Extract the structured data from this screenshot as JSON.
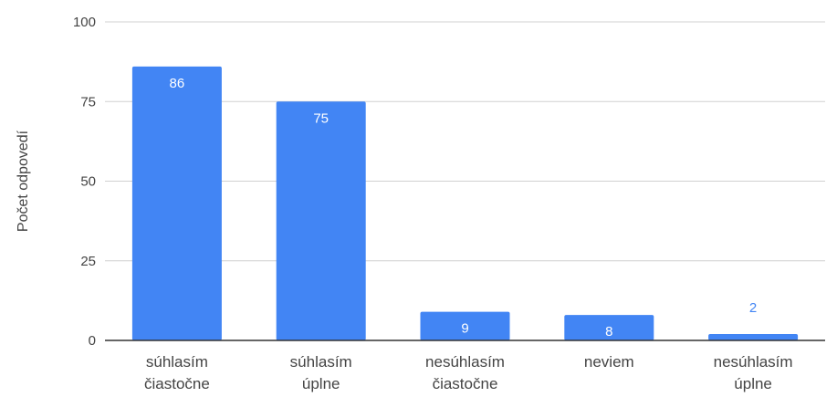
{
  "chart_data": {
    "type": "bar",
    "title": "",
    "xlabel": "",
    "ylabel": "Počet odpovedí",
    "categories": [
      [
        "súhlasím",
        "čiastočne"
      ],
      [
        "súhlasím",
        "úplne"
      ],
      [
        "nesúhlasím",
        "čiastočne"
      ],
      [
        "neviem"
      ],
      [
        "nesúhlasím",
        "úplne"
      ]
    ],
    "values": [
      86,
      75,
      9,
      8,
      2
    ],
    "ylim": [
      0,
      100
    ],
    "yticks": [
      0,
      25,
      50,
      75,
      100
    ],
    "grid": true,
    "legend": "none",
    "colors": {
      "bar": "#4285f4",
      "grid": "#d0d0d0",
      "axis": "#333333",
      "tick_label": "#444444",
      "data_label_inside": "#ffffff",
      "data_label_outside": "#4285f4"
    }
  }
}
